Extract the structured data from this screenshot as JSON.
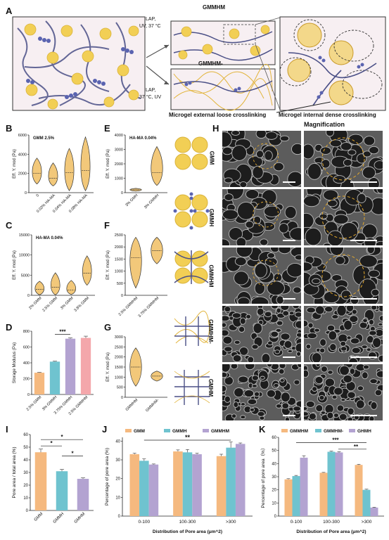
{
  "panel_letters": {
    "A": "A",
    "B": "B",
    "C": "C",
    "D": "D",
    "E": "E",
    "F": "F",
    "G": "G",
    "H": "H",
    "I": "I",
    "J": "J",
    "K": "K"
  },
  "panelA": {
    "top_arrow_line1": "LAP,",
    "top_arrow_line2": "UV, 37 °C",
    "bottom_arrow_line1": "LAP,",
    "bottom_arrow_line2": "37 °C, UV",
    "top_box_title": "GMMHM",
    "bottom_box_title": "GMMHM-",
    "caption_external": "Microgel external loose crosslinking",
    "caption_internal": "Microgel internal dense crosslinking",
    "colors": {
      "microgel": "#f2cf55",
      "chain": "#4a4f86",
      "bead": "#5a63b0",
      "box": "#f7eff2"
    }
  },
  "panelH": {
    "magnification": "Magnification",
    "rows": [
      "GMM",
      "GMMH",
      "GMMHM",
      "GMMHM-",
      "GMHM"
    ]
  },
  "chart_data": [
    {
      "id": "B",
      "type": "violin",
      "title": "GMM 2.5%",
      "ylabel": "Eff. Y. mod (Pa)",
      "yticks": [
        0,
        2000,
        4000,
        6000
      ],
      "ylim": [
        0,
        6000
      ],
      "categories": [
        "0",
        "0.02% HA-MA",
        "0.04% HA-MA",
        "0.08% HA-MA"
      ],
      "median": [
        2000,
        1500,
        2100,
        2300
      ],
      "min": [
        900,
        700,
        200,
        200
      ],
      "max": [
        3600,
        3100,
        4600,
        5800
      ],
      "color": "#f2c87a"
    },
    {
      "id": "C",
      "type": "violin",
      "title": "HA-MA 0.04%",
      "ylabel": "Eff. Y. mod (Pa)",
      "yticks": [
        0,
        5000,
        10000,
        15000
      ],
      "ylim": [
        0,
        15000
      ],
      "categories": [
        "2% GMM",
        "2.5% GMM",
        "3% GMM",
        "3.8% GMM"
      ],
      "median": [
        1500,
        2000,
        1300,
        5500
      ],
      "min": [
        100,
        100,
        200,
        2500
      ],
      "max": [
        3500,
        5600,
        3700,
        9800
      ],
      "color": "#f2c87a"
    },
    {
      "id": "D",
      "type": "bar",
      "ylabel": "Storage Modulus (Pa)",
      "yticks": [
        0,
        200,
        400,
        600,
        800
      ],
      "ylim": [
        0,
        800
      ],
      "categories": [
        "2.5% GMM",
        "3% GMMH",
        "3.75% GMMH",
        "2.5% GMMHM"
      ],
      "values": [
        275,
        415,
        705,
        715
      ],
      "errors": [
        5,
        6,
        10,
        22
      ],
      "colors": [
        "#f5b97f",
        "#6fc3cf",
        "#b3a3d1",
        "#f4a7ab"
      ],
      "significance": "***"
    },
    {
      "id": "E",
      "type": "violin",
      "title": "HA-MA 0.04%",
      "ylabel": "Eff. Y. mod (Pa)",
      "yticks": [
        0,
        1000,
        2000,
        3000,
        4000
      ],
      "ylim": [
        0,
        4000
      ],
      "categories": [
        "3% GMH",
        "3% GMMH"
      ],
      "median": [
        200,
        1400
      ],
      "min": [
        100,
        500
      ],
      "max": [
        300,
        3200
      ],
      "color": "#f2c87a"
    },
    {
      "id": "F",
      "type": "violin",
      "ylabel": "Eff. Y. mod (Pa)",
      "yticks": [
        0,
        500,
        1000,
        1500,
        2000,
        2500
      ],
      "ylim": [
        0,
        2500
      ],
      "categories": [
        "2.5% GMMHM",
        "3.75% GMMHM"
      ],
      "median": [
        1550,
        1850
      ],
      "min": [
        300,
        1300
      ],
      "max": [
        2400,
        2400
      ],
      "color": "#f2c87a"
    },
    {
      "id": "G",
      "type": "violin",
      "ylabel": "Eff. Y. mod (Pa)",
      "yticks": [
        0,
        500,
        1000,
        1500,
        2000,
        2500,
        3000
      ],
      "ylim": [
        0,
        3000
      ],
      "categories": [
        "GMMHM",
        "GMMHM-"
      ],
      "median": [
        1500,
        1050
      ],
      "min": [
        550,
        800
      ],
      "max": [
        2450,
        1300
      ],
      "color": "#f2c87a"
    },
    {
      "id": "I",
      "type": "bar",
      "ylabel": "Pore area / total area (%)",
      "yticks": [
        0,
        10,
        20,
        30,
        40,
        50,
        60
      ],
      "ylim": [
        0,
        60
      ],
      "categories": [
        "GMM",
        "GMMH",
        "GMHM"
      ],
      "values": [
        46,
        31,
        25
      ],
      "errors": [
        2.5,
        1.5,
        0.8
      ],
      "colors": [
        "#f5b97f",
        "#6fc3cf",
        "#b3a3d1"
      ],
      "significance": [
        "*",
        "*",
        "*"
      ]
    },
    {
      "id": "J",
      "type": "bar",
      "ylabel": "Percentage of pore area (%)",
      "xlabel": "Distribution of Pore area (μm^2)",
      "yticks": [
        0,
        10,
        20,
        30,
        40
      ],
      "ylim": [
        0,
        42
      ],
      "categories": [
        "0-100",
        "100-300",
        ">300"
      ],
      "series": [
        {
          "name": "GMM",
          "values": [
            33,
            34.5,
            32
          ],
          "errors": [
            0.5,
            0.8,
            1
          ]
        },
        {
          "name": "GMMH",
          "values": [
            29.5,
            34,
            36.5
          ],
          "errors": [
            1,
            1.5,
            3
          ]
        },
        {
          "name": "GMMHM",
          "values": [
            27.5,
            33,
            38.5
          ],
          "errors": [
            0.3,
            0.5,
            0.5
          ]
        }
      ],
      "colors": [
        "#f5b97f",
        "#6fc3cf",
        "#b3a3d1"
      ],
      "legend": "top",
      "significance": "**"
    },
    {
      "id": "K",
      "type": "bar",
      "ylabel": "Percentage of pore area（%）",
      "xlabel": "Distribution of Pore area (μm^2)",
      "yticks": [
        0,
        10,
        20,
        30,
        40,
        50,
        60
      ],
      "ylim": [
        0,
        60
      ],
      "categories": [
        "0-100",
        "100-300",
        ">300"
      ],
      "series": [
        {
          "name": "GMMHM",
          "values": [
            28,
            33,
            39
          ],
          "errors": [
            0.5,
            0.3,
            0.5
          ]
        },
        {
          "name": "GMMHM-",
          "values": [
            30.5,
            49,
            20
          ],
          "errors": [
            0.5,
            0.5,
            0.5
          ]
        },
        {
          "name": "GHMH",
          "values": [
            44.5,
            48.5,
            6.5
          ],
          "errors": [
            1.5,
            0.5,
            0.3
          ]
        }
      ],
      "colors": [
        "#f5b97f",
        "#6fc3cf",
        "#b3a3d1"
      ],
      "legend": "top",
      "significance": [
        "***",
        "**"
      ]
    }
  ]
}
